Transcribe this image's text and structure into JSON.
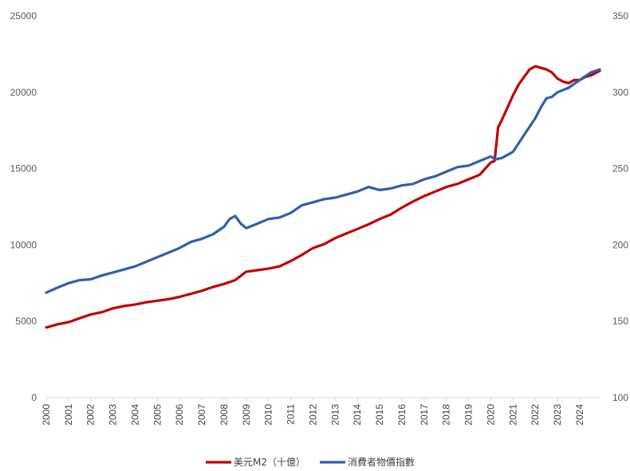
{
  "chart_data": {
    "type": "line",
    "title": "",
    "y_left": {
      "ticks": [
        0,
        5000,
        10000,
        15000,
        20000,
        25000
      ],
      "range": [
        0,
        25000
      ]
    },
    "y_right": {
      "ticks": [
        100,
        150,
        200,
        250,
        300,
        350
      ],
      "range": [
        100,
        350
      ]
    },
    "x_range": [
      2000,
      2024.9
    ],
    "x_ticks": [
      "2000",
      "2001",
      "2002",
      "2003",
      "2004",
      "2005",
      "2006",
      "2007",
      "2008",
      "2009",
      "2010",
      "2011",
      "2012",
      "2013",
      "2014",
      "2015",
      "2016",
      "2017",
      "2018",
      "2019",
      "2020",
      "2021",
      "2022",
      "2023",
      "2024"
    ],
    "grid": false,
    "legend_position": "bottom",
    "series": [
      {
        "name": "美元M2（十億）",
        "axis": "left",
        "color": "#c00000",
        "x": [
          2000,
          2000.5,
          2001,
          2001.5,
          2002,
          2002.5,
          2003,
          2003.5,
          2004,
          2004.5,
          2005,
          2005.5,
          2006,
          2006.5,
          2007,
          2007.5,
          2008,
          2008.5,
          2009,
          2009.5,
          2010,
          2010.5,
          2011,
          2011.5,
          2012,
          2012.5,
          2013,
          2013.5,
          2014,
          2014.5,
          2015,
          2015.5,
          2016,
          2016.5,
          2017,
          2017.5,
          2018,
          2018.5,
          2019,
          2019.5,
          2020.0,
          2020.17,
          2020.33,
          2020.5,
          2020.75,
          2021,
          2021.25,
          2021.5,
          2021.75,
          2022,
          2022.25,
          2022.5,
          2022.75,
          2023,
          2023.25,
          2023.5,
          2023.75,
          2024,
          2024.25,
          2024.5,
          2024.9
        ],
        "values": [
          4600,
          4800,
          4950,
          5200,
          5450,
          5600,
          5850,
          6000,
          6100,
          6250,
          6350,
          6450,
          6600,
          6800,
          7000,
          7250,
          7450,
          7700,
          8250,
          8350,
          8450,
          8600,
          8950,
          9350,
          9800,
          10050,
          10450,
          10750,
          11050,
          11350,
          11700,
          12000,
          12450,
          12850,
          13200,
          13500,
          13800,
          14000,
          14300,
          14600,
          15400,
          15500,
          17700,
          18200,
          19000,
          19800,
          20500,
          21000,
          21500,
          21700,
          21600,
          21500,
          21300,
          20900,
          20700,
          20600,
          20800,
          20800,
          21000,
          21100,
          21400
        ]
      },
      {
        "name": "消費者物價指數",
        "axis": "right",
        "color": "#2e5fac",
        "x": [
          2000,
          2000.5,
          2001,
          2001.5,
          2002,
          2002.5,
          2003,
          2003.5,
          2004,
          2004.5,
          2005,
          2005.5,
          2006,
          2006.5,
          2007,
          2007.5,
          2008,
          2008.25,
          2008.5,
          2008.75,
          2009,
          2009.5,
          2010,
          2010.5,
          2011,
          2011.5,
          2012,
          2012.5,
          2013,
          2013.5,
          2014,
          2014.5,
          2015,
          2015.5,
          2016,
          2016.5,
          2017,
          2017.5,
          2018,
          2018.5,
          2019,
          2019.5,
          2020,
          2020.2,
          2020.5,
          2021,
          2021.5,
          2022,
          2022.25,
          2022.5,
          2022.75,
          2023,
          2023.5,
          2024,
          2024.5,
          2024.9
        ],
        "values": [
          168.8,
          172,
          175,
          177,
          177.5,
          180,
          182,
          184,
          186,
          189,
          192,
          195,
          198,
          202,
          204,
          207,
          212,
          217,
          219,
          214,
          211,
          214,
          217,
          218,
          221,
          226,
          228,
          230,
          231,
          233,
          235,
          238,
          236,
          237,
          239,
          240,
          243,
          245,
          248,
          251,
          252,
          255,
          258,
          256,
          257,
          261,
          272,
          283,
          290,
          296,
          297,
          300,
          303,
          308,
          313,
          315
        ]
      }
    ]
  }
}
